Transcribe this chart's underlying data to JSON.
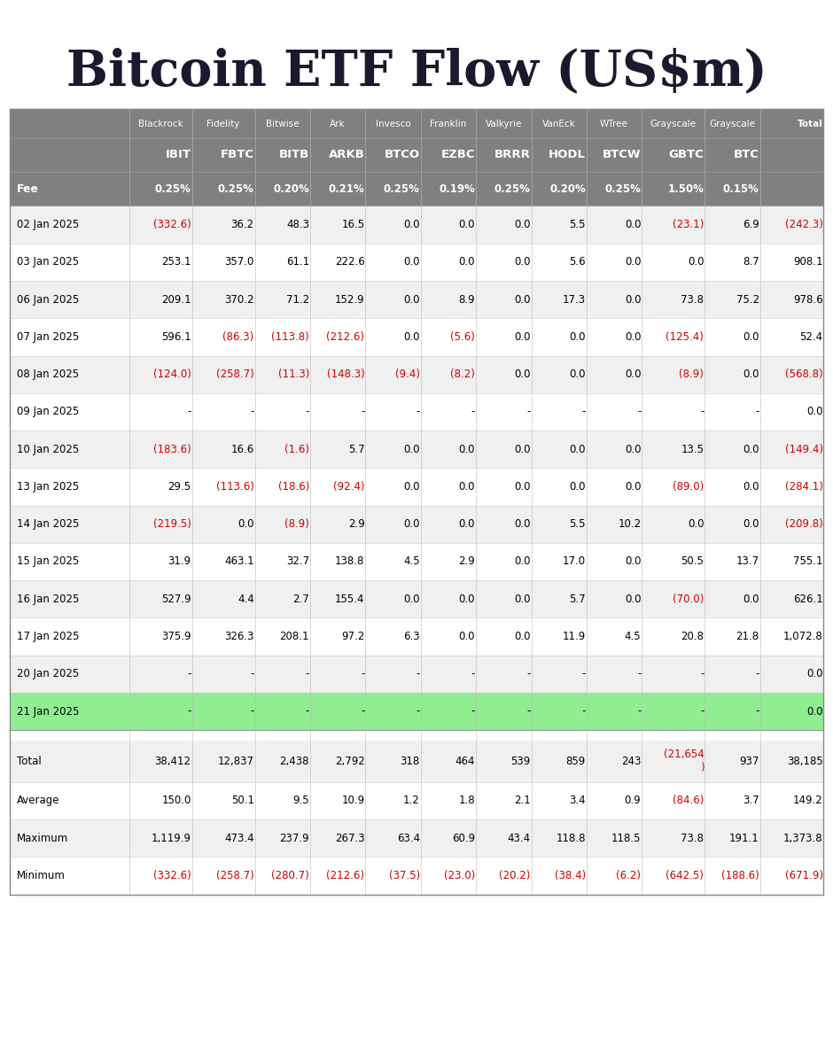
{
  "title": "Bitcoin ETF Flow (US$m)",
  "header_row1": [
    "",
    "Blackrock",
    "Fidelity",
    "Bitwise",
    "Ark",
    "Invesco",
    "Franklin",
    "Valkyrie",
    "VanEck",
    "WTree",
    "Grayscale",
    "Grayscale",
    "Total"
  ],
  "header_row2": [
    "",
    "IBIT",
    "FBTC",
    "BITB",
    "ARKB",
    "BTCO",
    "EZBC",
    "BRRR",
    "HODL",
    "BTCW",
    "GBTC",
    "BTC",
    ""
  ],
  "fee_row": [
    "Fee",
    "0.25%",
    "0.25%",
    "0.20%",
    "0.21%",
    "0.25%",
    "0.19%",
    "0.25%",
    "0.20%",
    "0.25%",
    "1.50%",
    "0.15%",
    ""
  ],
  "data_rows": [
    [
      "02 Jan 2025",
      "(332.6)",
      "36.2",
      "48.3",
      "16.5",
      "0.0",
      "0.0",
      "0.0",
      "5.5",
      "0.0",
      "(23.1)",
      "6.9",
      "(242.3)"
    ],
    [
      "03 Jan 2025",
      "253.1",
      "357.0",
      "61.1",
      "222.6",
      "0.0",
      "0.0",
      "0.0",
      "5.6",
      "0.0",
      "0.0",
      "8.7",
      "908.1"
    ],
    [
      "06 Jan 2025",
      "209.1",
      "370.2",
      "71.2",
      "152.9",
      "0.0",
      "8.9",
      "0.0",
      "17.3",
      "0.0",
      "73.8",
      "75.2",
      "978.6"
    ],
    [
      "07 Jan 2025",
      "596.1",
      "(86.3)",
      "(113.8)",
      "(212.6)",
      "0.0",
      "(5.6)",
      "0.0",
      "0.0",
      "0.0",
      "(125.4)",
      "0.0",
      "52.4"
    ],
    [
      "08 Jan 2025",
      "(124.0)",
      "(258.7)",
      "(11.3)",
      "(148.3)",
      "(9.4)",
      "(8.2)",
      "0.0",
      "0.0",
      "0.0",
      "(8.9)",
      "0.0",
      "(568.8)"
    ],
    [
      "09 Jan 2025",
      "-",
      "-",
      "-",
      "-",
      "-",
      "-",
      "-",
      "-",
      "-",
      "-",
      "-",
      "0.0"
    ],
    [
      "10 Jan 2025",
      "(183.6)",
      "16.6",
      "(1.6)",
      "5.7",
      "0.0",
      "0.0",
      "0.0",
      "0.0",
      "0.0",
      "13.5",
      "0.0",
      "(149.4)"
    ],
    [
      "13 Jan 2025",
      "29.5",
      "(113.6)",
      "(18.6)",
      "(92.4)",
      "0.0",
      "0.0",
      "0.0",
      "0.0",
      "0.0",
      "(89.0)",
      "0.0",
      "(284.1)"
    ],
    [
      "14 Jan 2025",
      "(219.5)",
      "0.0",
      "(8.9)",
      "2.9",
      "0.0",
      "0.0",
      "0.0",
      "5.5",
      "10.2",
      "0.0",
      "0.0",
      "(209.8)"
    ],
    [
      "15 Jan 2025",
      "31.9",
      "463.1",
      "32.7",
      "138.8",
      "4.5",
      "2.9",
      "0.0",
      "17.0",
      "0.0",
      "50.5",
      "13.7",
      "755.1"
    ],
    [
      "16 Jan 2025",
      "527.9",
      "4.4",
      "2.7",
      "155.4",
      "0.0",
      "0.0",
      "0.0",
      "5.7",
      "0.0",
      "(70.0)",
      "0.0",
      "626.1"
    ],
    [
      "17 Jan 2025",
      "375.9",
      "326.3",
      "208.1",
      "97.2",
      "6.3",
      "0.0",
      "0.0",
      "11.9",
      "4.5",
      "20.8",
      "21.8",
      "1,072.8"
    ],
    [
      "20 Jan 2025",
      "-",
      "-",
      "-",
      "-",
      "-",
      "-",
      "-",
      "-",
      "-",
      "-",
      "-",
      "0.0"
    ],
    [
      "21 Jan 2025",
      "-",
      "-",
      "-",
      "-",
      "-",
      "-",
      "-",
      "-",
      "-",
      "-",
      "-",
      "0.0"
    ]
  ],
  "summary_rows": [
    [
      "Total",
      "38,412",
      "12,837",
      "2,438",
      "2,792",
      "318",
      "464",
      "539",
      "859",
      "243",
      "(21,654\n)",
      "937",
      "38,185"
    ],
    [
      "Average",
      "150.0",
      "50.1",
      "9.5",
      "10.9",
      "1.2",
      "1.8",
      "2.1",
      "3.4",
      "0.9",
      "(84.6)",
      "3.7",
      "149.2"
    ],
    [
      "Maximum",
      "1,119.9",
      "473.4",
      "237.9",
      "267.3",
      "63.4",
      "60.9",
      "43.4",
      "118.8",
      "118.5",
      "73.8",
      "191.1",
      "1,373.8"
    ],
    [
      "Minimum",
      "(332.6)",
      "(258.7)",
      "(280.7)",
      "(212.6)",
      "(37.5)",
      "(23.0)",
      "(20.2)",
      "(38.4)",
      "(6.2)",
      "(642.5)",
      "(188.6)",
      "(671.9)"
    ]
  ],
  "highlight_row_idx": 13,
  "header_bg": "#808080",
  "header_fg": "#ffffff",
  "fee_bg": "#808080",
  "fee_fg": "#ffffff",
  "row_bg_odd": "#f0f0f0",
  "row_bg_even": "#ffffff",
  "highlight_bg": "#90EE90",
  "negative_color": "#cc0000",
  "positive_color": "#000000",
  "separator_color": "#999999",
  "col_widths_rel": [
    1.55,
    0.82,
    0.82,
    0.72,
    0.72,
    0.72,
    0.72,
    0.72,
    0.72,
    0.72,
    0.82,
    0.72,
    0.82
  ]
}
